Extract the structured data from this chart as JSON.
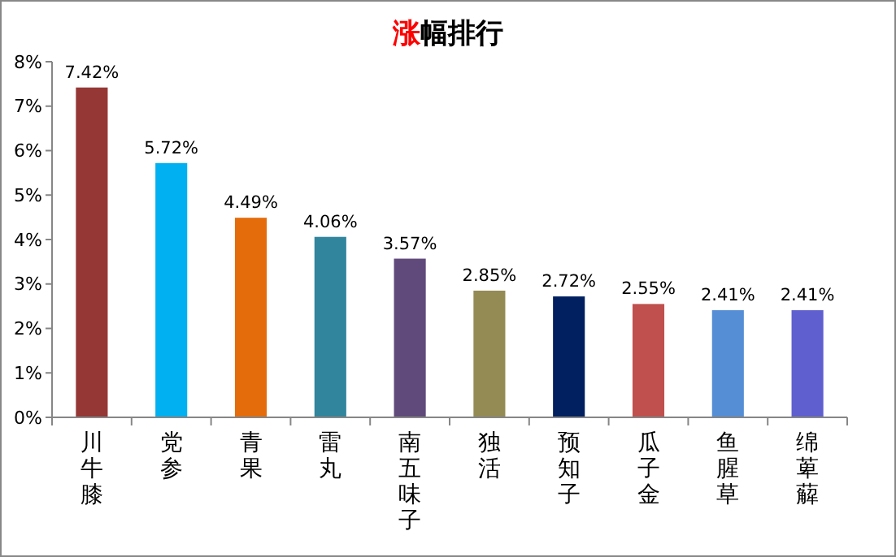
{
  "chart_data": {
    "type": "bar",
    "title": "涨幅排行",
    "categories": [
      "川牛膝",
      "党参",
      "青果",
      "雷丸",
      "南五味子",
      "独活",
      "预知子",
      "瓜子金",
      "鱼腥草",
      "绵萆薢"
    ],
    "values": [
      7.42,
      5.72,
      4.49,
      4.06,
      3.57,
      2.85,
      2.72,
      2.55,
      2.41,
      2.41
    ],
    "colors": [
      "#953735",
      "#00b0f0",
      "#e46c0a",
      "#31859c",
      "#604a7b",
      "#948a54",
      "#002060",
      "#c0504d",
      "#558ed5",
      "#5f5fcf"
    ],
    "value_labels": [
      "7.42%",
      "5.72%",
      "4.49%",
      "4.06%",
      "3.57%",
      "2.85%",
      "2.72%",
      "2.55%",
      "2.41%",
      "2.41%"
    ],
    "ylim": [
      0,
      8
    ],
    "yticks": [
      {
        "value": 0,
        "label": "0%"
      },
      {
        "value": 1,
        "label": "1%"
      },
      {
        "value": 2,
        "label": "2%"
      },
      {
        "value": 3,
        "label": "3%"
      },
      {
        "value": 4,
        "label": "4%"
      },
      {
        "value": 5,
        "label": "5%"
      },
      {
        "value": 6,
        "label": "6%"
      },
      {
        "value": 7,
        "label": "7%"
      },
      {
        "value": 8,
        "label": "8%"
      }
    ],
    "grid": false
  }
}
